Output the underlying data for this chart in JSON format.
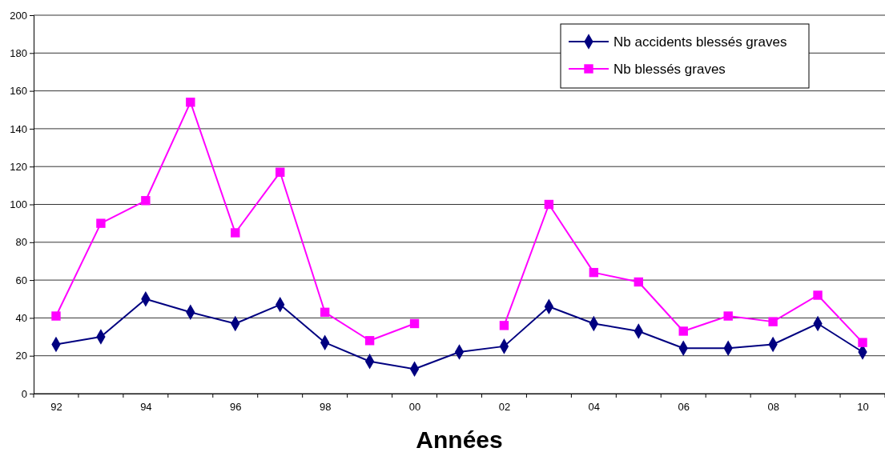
{
  "chart_data": {
    "type": "line",
    "xlabel": "Années",
    "categories": [
      "92",
      null,
      "94",
      null,
      "96",
      null,
      "98",
      null,
      "00",
      null,
      "02",
      null,
      "04",
      null,
      "06",
      null,
      "08",
      null,
      "10"
    ],
    "series": [
      {
        "name": "Nb accidents blessés graves",
        "color": "#000080",
        "marker": "diamond",
        "values": [
          26,
          30,
          50,
          43,
          37,
          47,
          27,
          17,
          13,
          22,
          25,
          46,
          37,
          33,
          24,
          24,
          26,
          37,
          22
        ]
      },
      {
        "name": "Nb blessés graves",
        "color": "#ff00ff",
        "marker": "square",
        "values": [
          41,
          90,
          102,
          154,
          85,
          117,
          43,
          28,
          37,
          null,
          36,
          100,
          64,
          59,
          33,
          41,
          38,
          52,
          27
        ]
      }
    ],
    "ylim": [
      0,
      200
    ],
    "yticks": [
      0,
      20,
      40,
      60,
      80,
      100,
      120,
      140,
      160,
      180,
      200
    ],
    "grid": "y",
    "legend": "top right"
  }
}
